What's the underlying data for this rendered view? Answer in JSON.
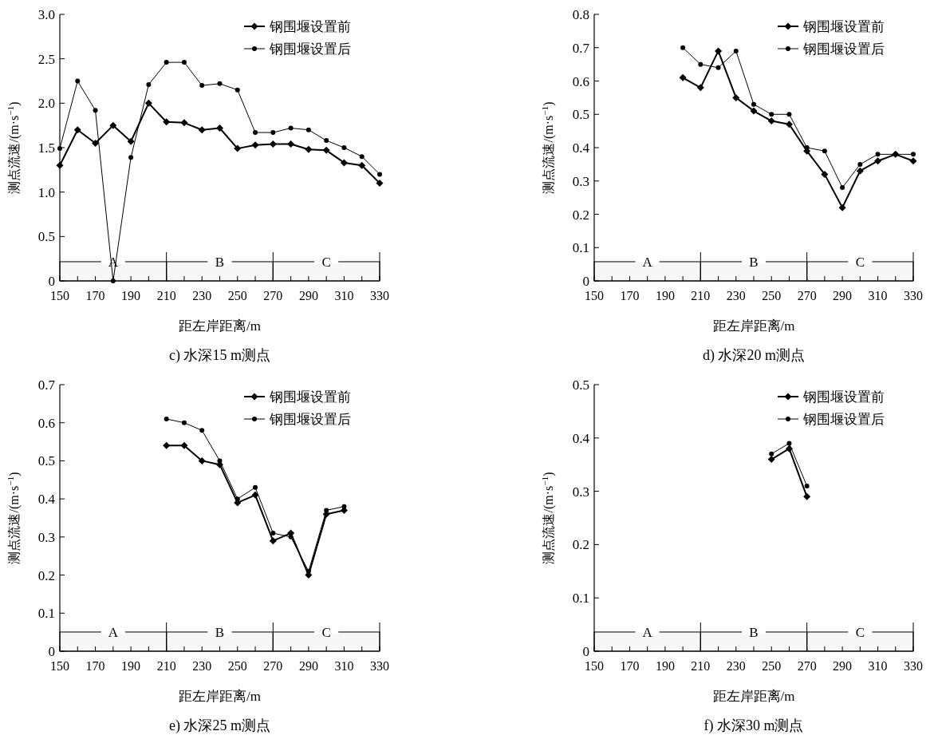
{
  "chart_data": [
    {
      "type": "line",
      "title": "c) 水深15 m测点",
      "xlabel": "距左岸距离/m",
      "ylabel": "测点流速/(m·s$^{−1}$)",
      "legend": "top right",
      "x": [
        150,
        160,
        170,
        180,
        190,
        200,
        210,
        220,
        230,
        240,
        250,
        260,
        270,
        280,
        290,
        300,
        310,
        320,
        330
      ],
      "series": [
        {
          "name": "钢围堰设置前",
          "color": "#000000",
          "marker": "diamond",
          "values": [
            1.3,
            1.7,
            1.55,
            1.75,
            1.57,
            2.0,
            1.79,
            1.78,
            1.7,
            1.72,
            1.49,
            1.53,
            1.54,
            1.54,
            1.48,
            1.47,
            1.33,
            1.3,
            1.1
          ]
        },
        {
          "name": "钢围堰设置后",
          "color": "#000000",
          "marker": "circle",
          "values": [
            1.49,
            2.25,
            1.92,
            0,
            1.39,
            2.21,
            2.46,
            2.46,
            2.2,
            2.22,
            2.15,
            1.67,
            1.67,
            1.72,
            1.7,
            1.58,
            1.5,
            1.4,
            1.2
          ]
        }
      ],
      "xlim": [
        150,
        330
      ],
      "xticks": [
        150,
        {
          "value": 160,
          "label": null
        },
        170,
        {
          "value": 180,
          "label": null
        },
        190,
        {
          "value": 200,
          "label": null
        },
        210,
        {
          "value": 220,
          "label": null
        },
        230,
        {
          "value": 240,
          "label": null
        },
        250,
        {
          "value": 260,
          "label": null
        },
        270,
        {
          "value": 280,
          "label": null
        },
        290,
        {
          "value": 300,
          "label": null
        },
        310,
        {
          "value": 320,
          "label": null
        },
        330
      ],
      "ref_lines": [
        {
          "axis": "x",
          "value": 210
        },
        {
          "axis": "x",
          "value": 270
        },
        {
          "axis": "x",
          "value": 330
        }
      ],
      "ylim": [
        0,
        3.0
      ],
      "yticks": [
        0,
        0.5,
        {
          "value": 1,
          "label": "1.0"
        },
        1.5,
        {
          "value": 2,
          "label": "2.0"
        },
        2.5,
        {
          "value": 3,
          "label": "3.0"
        }
      ],
      "bands": [
        {
          "axis": "x",
          "from": 150,
          "to": 210,
          "label": "A"
        },
        {
          "axis": "x",
          "from": 210,
          "to": 270,
          "label": "B"
        },
        {
          "axis": "x",
          "from": 270,
          "to": 330,
          "label": "C"
        }
      ]
    },
    {
      "type": "line",
      "title": "d) 水深20 m测点",
      "xlabel": "距左岸距离/m",
      "ylabel": "测点流速/(m·s$^{−1}$)",
      "legend": "top right",
      "x": [
        200,
        210,
        220,
        230,
        240,
        250,
        260,
        270,
        280,
        290,
        300,
        310,
        320,
        330
      ],
      "series": [
        {
          "name": "钢围堰设置前",
          "color": "#000000",
          "marker": "diamond",
          "values": [
            0.61,
            0.58,
            0.69,
            0.55,
            0.51,
            0.48,
            0.47,
            0.39,
            0.32,
            0.22,
            0.33,
            0.36,
            0.38,
            0.36
          ]
        },
        {
          "name": "钢围堰设置后",
          "color": "#000000",
          "marker": "circle",
          "values": [
            0.7,
            0.65,
            0.64,
            0.69,
            0.53,
            0.5,
            0.5,
            0.4,
            0.39,
            0.28,
            0.35,
            0.38,
            0.38,
            0.38
          ]
        }
      ],
      "xlim": [
        150,
        330
      ],
      "xticks": [
        150,
        {
          "value": 160,
          "label": null
        },
        170,
        {
          "value": 180,
          "label": null
        },
        190,
        {
          "value": 200,
          "label": null
        },
        210,
        {
          "value": 220,
          "label": null
        },
        230,
        {
          "value": 240,
          "label": null
        },
        250,
        {
          "value": 260,
          "label": null
        },
        270,
        {
          "value": 280,
          "label": null
        },
        290,
        {
          "value": 300,
          "label": null
        },
        310,
        {
          "value": 320,
          "label": null
        },
        330
      ],
      "ref_lines": [
        {
          "axis": "x",
          "value": 210
        },
        {
          "axis": "x",
          "value": 270
        },
        {
          "axis": "x",
          "value": 330
        }
      ],
      "ylim": [
        0,
        0.8
      ],
      "yticks": [
        0,
        0.1,
        0.2,
        0.3,
        0.4,
        0.5,
        0.6,
        0.7,
        0.8
      ],
      "bands": [
        {
          "axis": "x",
          "from": 150,
          "to": 210,
          "label": "A"
        },
        {
          "axis": "x",
          "from": 210,
          "to": 270,
          "label": "B"
        },
        {
          "axis": "x",
          "from": 270,
          "to": 330,
          "label": "C"
        }
      ]
    },
    {
      "type": "line",
      "title": "e) 水深25 m测点",
      "xlabel": "距左岸距离/m",
      "ylabel": "测点流速/(m·s$^{−1}$)",
      "legend": "top right",
      "x": [
        210,
        220,
        230,
        240,
        250,
        260,
        270,
        280,
        290,
        300,
        310
      ],
      "series": [
        {
          "name": "钢围堰设置前",
          "color": "#000000",
          "marker": "diamond",
          "values": [
            0.54,
            0.54,
            0.5,
            0.49,
            0.39,
            0.41,
            0.29,
            0.31,
            0.2,
            0.36,
            0.37
          ]
        },
        {
          "name": "钢围堰设置后",
          "color": "#000000",
          "marker": "circle",
          "values": [
            0.61,
            0.6,
            0.58,
            0.5,
            0.4,
            0.43,
            0.31,
            0.3,
            0.21,
            0.37,
            0.38
          ]
        }
      ],
      "xlim": [
        150,
        330
      ],
      "xticks": [
        150,
        {
          "value": 160,
          "label": null
        },
        170,
        {
          "value": 180,
          "label": null
        },
        190,
        {
          "value": 200,
          "label": null
        },
        210,
        {
          "value": 220,
          "label": null
        },
        230,
        {
          "value": 240,
          "label": null
        },
        250,
        {
          "value": 260,
          "label": null
        },
        270,
        {
          "value": 280,
          "label": null
        },
        290,
        {
          "value": 300,
          "label": null
        },
        310,
        {
          "value": 320,
          "label": null
        },
        330
      ],
      "ref_lines": [
        {
          "axis": "x",
          "value": 210
        },
        {
          "axis": "x",
          "value": 270
        },
        {
          "axis": "x",
          "value": 330
        }
      ],
      "ylim": [
        0,
        0.7
      ],
      "yticks": [
        0,
        0.1,
        0.2,
        0.3,
        0.4,
        0.5,
        0.6,
        0.7
      ],
      "bands": [
        {
          "axis": "x",
          "from": 150,
          "to": 210,
          "label": "A"
        },
        {
          "axis": "x",
          "from": 210,
          "to": 270,
          "label": "B"
        },
        {
          "axis": "x",
          "from": 270,
          "to": 330,
          "label": "C"
        }
      ]
    },
    {
      "type": "line",
      "title": "f) 水深30 m测点",
      "xlabel": "距左岸距离/m",
      "ylabel": "测点流速/(m·s$^{−1}$)",
      "legend": "top right",
      "x": [
        250,
        260,
        270
      ],
      "series": [
        {
          "name": "钢围堰设置前",
          "color": "#000000",
          "marker": "diamond",
          "values": [
            0.36,
            0.38,
            0.29
          ]
        },
        {
          "name": "钢围堰设置后",
          "color": "#000000",
          "marker": "circle",
          "values": [
            0.37,
            0.39,
            0.31
          ]
        }
      ],
      "xlim": [
        150,
        330
      ],
      "xticks": [
        150,
        {
          "value": 160,
          "label": null
        },
        170,
        {
          "value": 180,
          "label": null
        },
        190,
        {
          "value": 200,
          "label": null
        },
        210,
        {
          "value": 220,
          "label": null
        },
        230,
        {
          "value": 240,
          "label": null
        },
        250,
        {
          "value": 260,
          "label": null
        },
        270,
        {
          "value": 280,
          "label": null
        },
        290,
        {
          "value": 300,
          "label": null
        },
        310,
        {
          "value": 320,
          "label": null
        },
        330
      ],
      "ref_lines": [
        {
          "axis": "x",
          "value": 210
        },
        {
          "axis": "x",
          "value": 270
        },
        {
          "axis": "x",
          "value": 330
        }
      ],
      "ylim": [
        0,
        0.5
      ],
      "yticks": [
        0,
        0.1,
        0.2,
        0.3,
        0.4,
        0.5
      ],
      "bands": [
        {
          "axis": "x",
          "from": 150,
          "to": 210,
          "label": "A"
        },
        {
          "axis": "x",
          "from": 210,
          "to": 270,
          "label": "B"
        },
        {
          "axis": "x",
          "from": 270,
          "to": 330,
          "label": "C"
        }
      ]
    }
  ]
}
